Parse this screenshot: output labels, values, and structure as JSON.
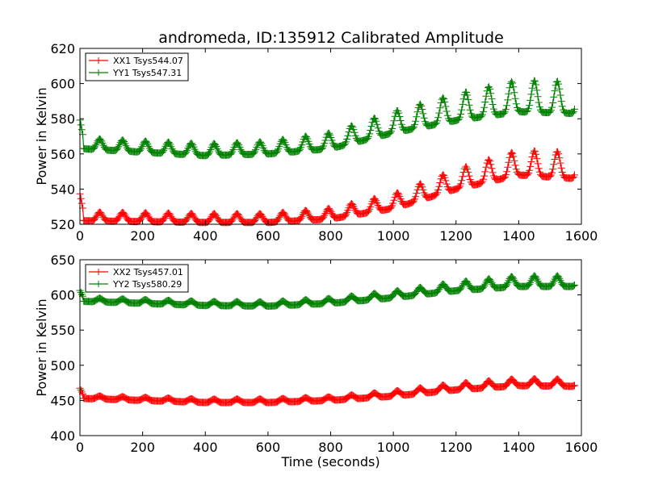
{
  "figure": {
    "title": "andromeda, ID:135912 Calibrated Amplitude"
  },
  "chart_data": [
    {
      "type": "line",
      "marker": "+",
      "title": "andromeda, ID:135912 Calibrated Amplitude",
      "xlabel": "",
      "ylabel": "Power in Kelvin",
      "xlim": [
        0,
        1600
      ],
      "ylim": [
        520,
        620
      ],
      "x_ticks": [
        "0",
        "200",
        "400",
        "600",
        "800",
        "1000",
        "1200",
        "1400",
        "1600"
      ],
      "y_ticks": [
        "520",
        "540",
        "560",
        "580",
        "600",
        "620"
      ],
      "legend_position": "top-left",
      "period": 73,
      "x_end": 1580,
      "series": [
        {
          "name": "XX1 Tsys544.07",
          "color": "#ff0000",
          "baseline_x": [
            0,
            400,
            600,
            800,
            1000,
            1200,
            1400,
            1580
          ],
          "baseline_y": [
            522,
            521,
            521,
            523,
            529,
            540,
            548,
            546
          ],
          "amplitude_x": [
            0,
            600,
            800,
            1000,
            1200,
            1400,
            1580
          ],
          "amplitude_y": [
            5,
            5,
            6,
            8,
            11,
            14,
            15
          ]
        },
        {
          "name": "YY1 Tsys547.31",
          "color": "#008000",
          "baseline_x": [
            0,
            400,
            600,
            800,
            1000,
            1200,
            1400,
            1580
          ],
          "baseline_y": [
            563,
            559,
            560,
            563,
            572,
            579,
            584,
            583
          ],
          "amplitude_x": [
            0,
            600,
            800,
            1000,
            1200,
            1400,
            1580
          ],
          "amplitude_y": [
            6,
            7,
            9,
            12,
            15,
            18,
            18
          ]
        }
      ]
    },
    {
      "type": "line",
      "marker": "+",
      "title": "",
      "xlabel": "Time (seconds)",
      "ylabel": "Power in Kelvin",
      "xlim": [
        0,
        1600
      ],
      "ylim": [
        400,
        650
      ],
      "x_ticks": [
        "0",
        "200",
        "400",
        "600",
        "800",
        "1000",
        "1200",
        "1400",
        "1600"
      ],
      "y_ticks": [
        "400",
        "450",
        "500",
        "550",
        "600",
        "650"
      ],
      "legend_position": "top-left",
      "period": 73,
      "x_end": 1580,
      "series": [
        {
          "name": "XX2 Tsys457.01",
          "color": "#ff0000",
          "baseline_x": [
            0,
            400,
            600,
            800,
            1000,
            1200,
            1400,
            1580
          ],
          "baseline_y": [
            453,
            447,
            447,
            450,
            456,
            465,
            471,
            470
          ],
          "amplitude_x": [
            0,
            600,
            800,
            1000,
            1200,
            1400,
            1580
          ],
          "amplitude_y": [
            4,
            5,
            5,
            7,
            9,
            10,
            10
          ]
        },
        {
          "name": "YY2 Tsys580.29",
          "color": "#008000",
          "baseline_x": [
            0,
            400,
            600,
            800,
            1000,
            1200,
            1400,
            1580
          ],
          "baseline_y": [
            591,
            585,
            584,
            588,
            596,
            606,
            612,
            612
          ],
          "amplitude_x": [
            0,
            600,
            800,
            1000,
            1200,
            1400,
            1580
          ],
          "amplitude_y": [
            5,
            6,
            7,
            9,
            12,
            15,
            15
          ]
        }
      ]
    }
  ]
}
